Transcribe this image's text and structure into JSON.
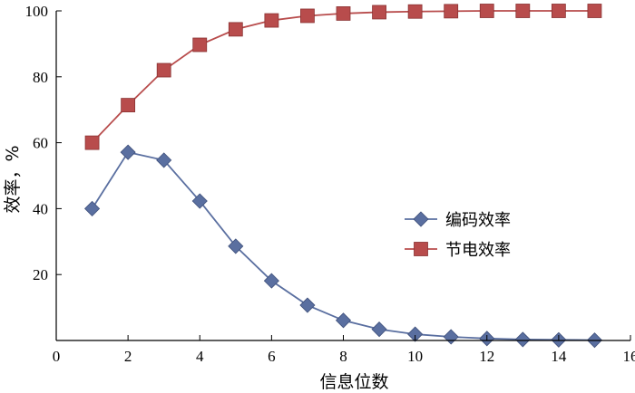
{
  "chart_data": {
    "type": "line",
    "xlabel": "信息位数",
    "ylabel": "效率，%",
    "xlim": [
      0,
      16
    ],
    "ylim": [
      0,
      100
    ],
    "xticks": [
      0,
      2,
      4,
      6,
      8,
      10,
      12,
      14,
      16
    ],
    "yticks": [
      20,
      40,
      60,
      80,
      100
    ],
    "grid": false,
    "legend": "center-right",
    "x": [
      1,
      2,
      3,
      4,
      5,
      6,
      7,
      8,
      9,
      10,
      11,
      12,
      13,
      14,
      15
    ],
    "series": [
      {
        "name": "编码效率",
        "color": "#5a6fa0",
        "marker": "diamond",
        "values": [
          40,
          57.1,
          54.7,
          42.3,
          28.6,
          18.1,
          10.7,
          6.1,
          3.4,
          1.9,
          1.1,
          0.6,
          0.3,
          0.2,
          0.1
        ]
      },
      {
        "name": "节电效率",
        "color": "#b84c4c",
        "marker": "square",
        "values": [
          60,
          71.4,
          82,
          89.7,
          94.4,
          97.1,
          98.5,
          99.2,
          99.6,
          99.8,
          99.9,
          100,
          100,
          100,
          100
        ]
      }
    ]
  }
}
